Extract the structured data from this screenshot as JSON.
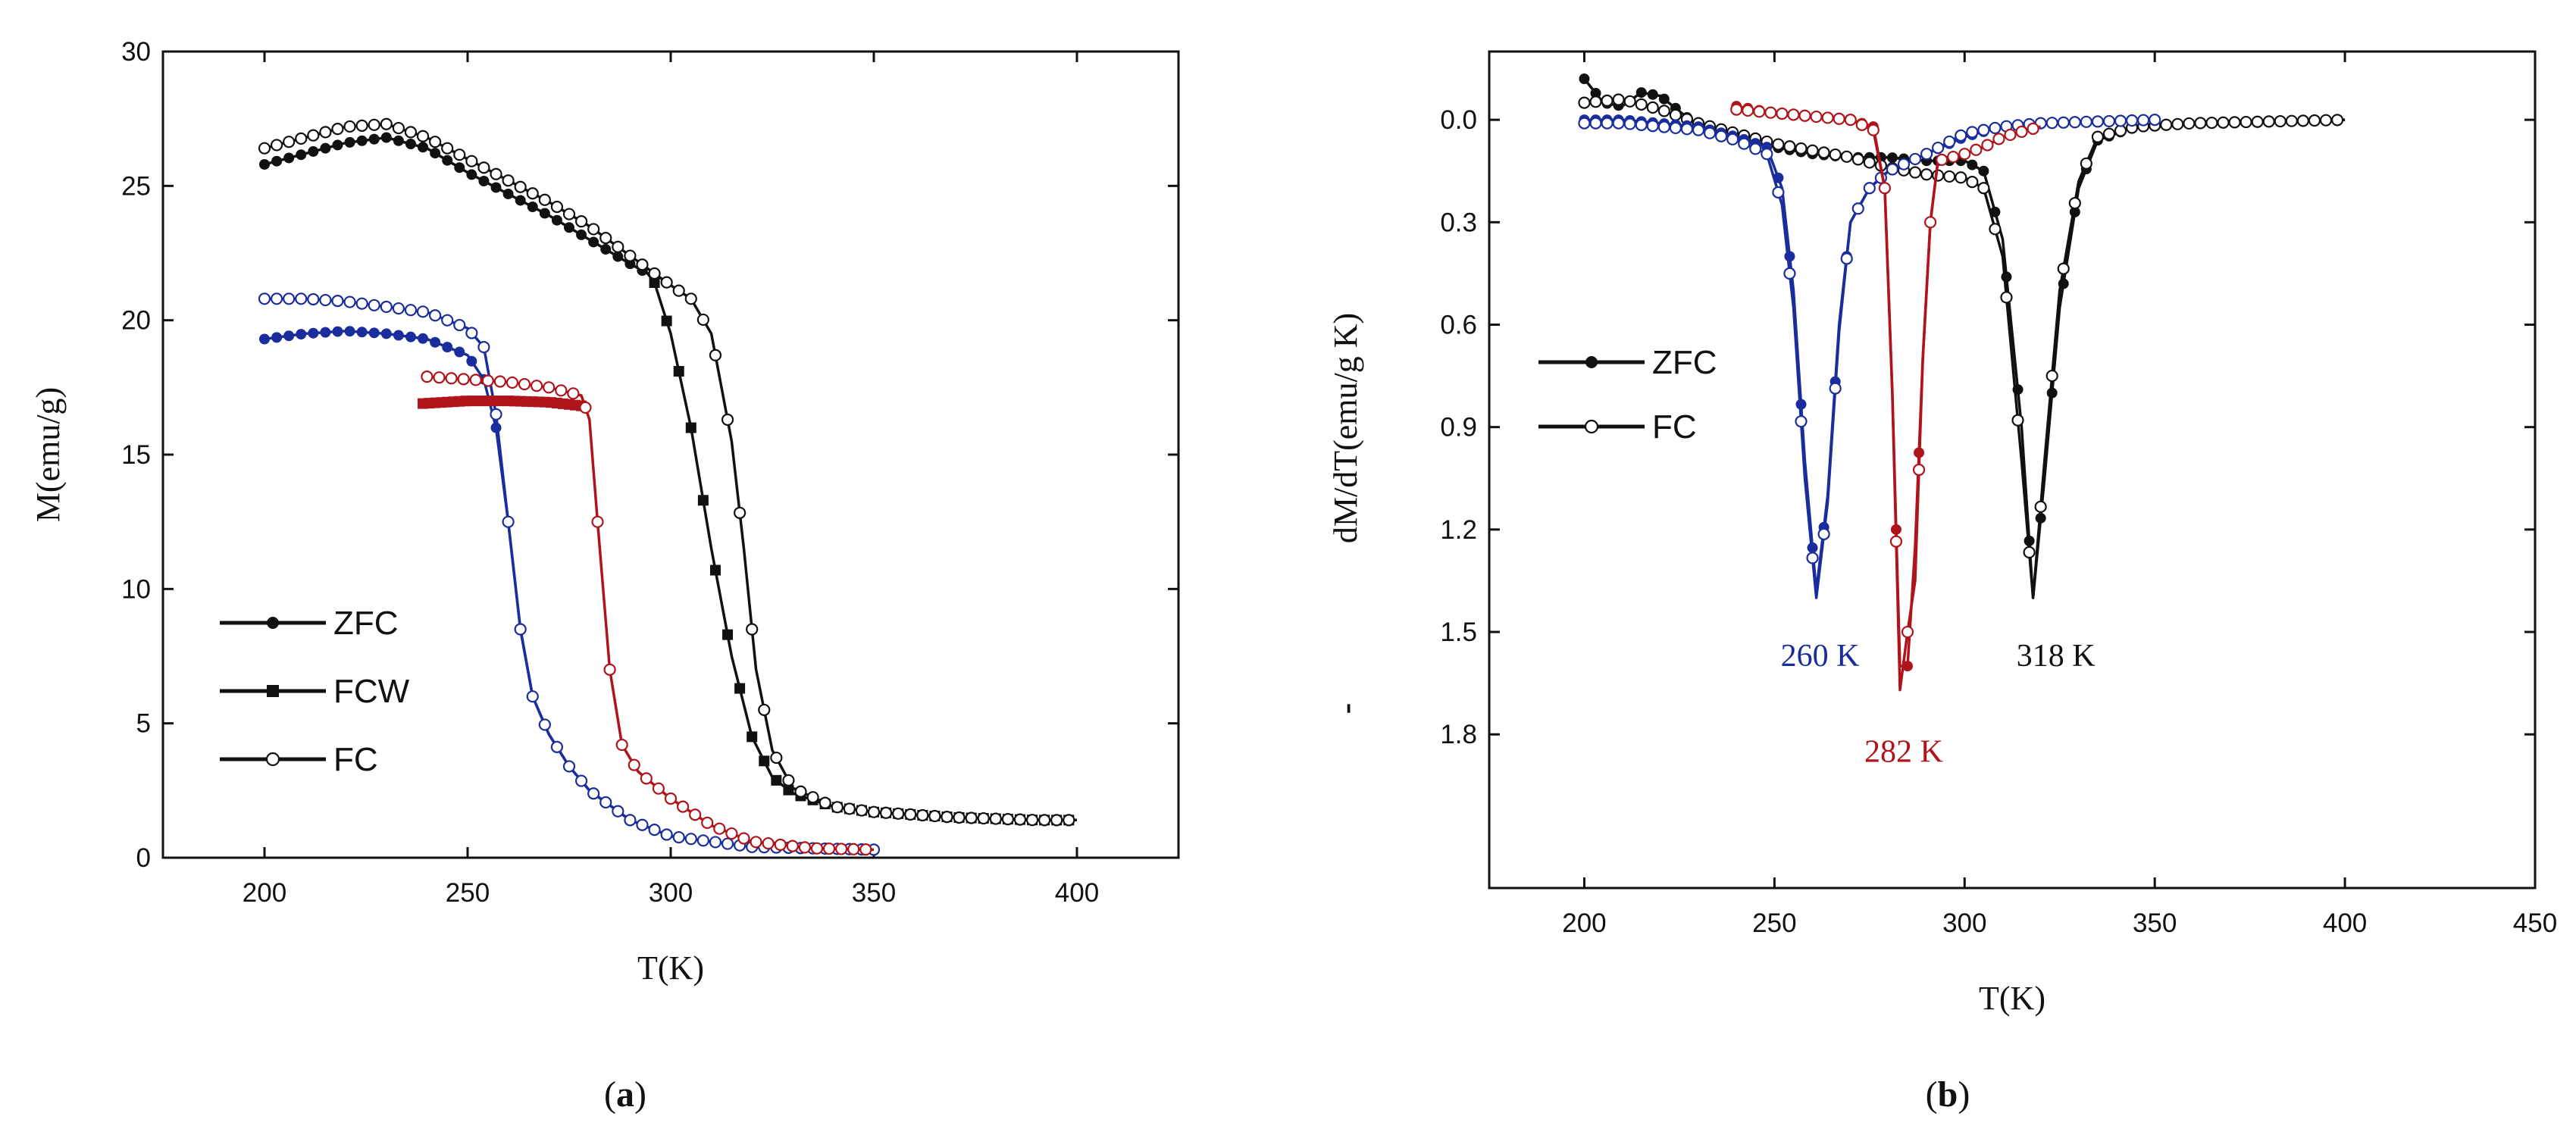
{
  "chart_data": [
    {
      "id": "a",
      "type": "line",
      "caption_open": "(",
      "caption_letter": "a",
      "caption_close": ")",
      "xlabel": "T(K)",
      "ylabel": "M(emu/g)",
      "xlim": [
        175,
        425
      ],
      "ylim": [
        0,
        30
      ],
      "xticks": [
        200,
        250,
        300,
        350,
        400
      ],
      "yticks": [
        0,
        5,
        10,
        15,
        20,
        25,
        30
      ],
      "legend_position": "lower-left",
      "legend": [
        {
          "label": "ZFC",
          "marker": "filled-circle"
        },
        {
          "label": "FCW",
          "marker": "filled-square"
        },
        {
          "label": "FC",
          "marker": "open-circle"
        }
      ],
      "series": [
        {
          "name": "ZFC 318K",
          "color": "#111111",
          "marker": "filled-circle",
          "step": 3,
          "end": 296,
          "points": [
            [
              200,
              25.8
            ],
            [
              210,
              26.2
            ],
            [
              220,
              26.6
            ],
            [
              230,
              26.8
            ],
            [
              240,
              26.4
            ],
            [
              250,
              25.5
            ],
            [
              260,
              24.7
            ],
            [
              270,
              23.9
            ],
            [
              280,
              23.0
            ],
            [
              290,
              22.1
            ],
            [
              296,
              21.6
            ]
          ]
        },
        {
          "name": "FCW 318K",
          "color": "#111111",
          "marker": "filled-square",
          "step": 3,
          "end": 400,
          "points": [
            [
              293,
              22.0
            ],
            [
              296,
              21.4
            ],
            [
              300,
              19.5
            ],
            [
              305,
              16.0
            ],
            [
              310,
              11.5
            ],
            [
              315,
              7.5
            ],
            [
              320,
              4.5
            ],
            [
              325,
              3.0
            ],
            [
              330,
              2.4
            ],
            [
              340,
              1.9
            ],
            [
              350,
              1.7
            ],
            [
              360,
              1.6
            ],
            [
              370,
              1.5
            ],
            [
              380,
              1.45
            ],
            [
              390,
              1.4
            ],
            [
              400,
              1.4
            ]
          ]
        },
        {
          "name": "FC 318K",
          "color": "#111111",
          "marker": "open-circle",
          "step": 3,
          "end": 400,
          "points": [
            [
              200,
              26.4
            ],
            [
              210,
              26.8
            ],
            [
              220,
              27.2
            ],
            [
              230,
              27.3
            ],
            [
              240,
              26.8
            ],
            [
              250,
              26.0
            ],
            [
              260,
              25.2
            ],
            [
              270,
              24.4
            ],
            [
              280,
              23.5
            ],
            [
              290,
              22.4
            ],
            [
              300,
              21.3
            ],
            [
              305,
              20.8
            ],
            [
              310,
              19.5
            ],
            [
              315,
              15.5
            ],
            [
              318,
              11.5
            ],
            [
              321,
              7.0
            ],
            [
              325,
              4.0
            ],
            [
              330,
              2.6
            ],
            [
              340,
              1.9
            ],
            [
              350,
              1.7
            ],
            [
              360,
              1.6
            ],
            [
              370,
              1.5
            ],
            [
              380,
              1.45
            ],
            [
              390,
              1.4
            ],
            [
              400,
              1.4
            ]
          ]
        },
        {
          "name": "ZFC 260K",
          "color": "#1a2d9c",
          "marker": "filled-circle",
          "step": 3,
          "end": 350,
          "points": [
            [
              200,
              19.3
            ],
            [
              210,
              19.5
            ],
            [
              220,
              19.6
            ],
            [
              230,
              19.5
            ],
            [
              240,
              19.3
            ],
            [
              250,
              18.7
            ],
            [
              254,
              17.8
            ],
            [
              257,
              16.0
            ],
            [
              260,
              12.5
            ],
            [
              263,
              8.5
            ],
            [
              266,
              6.0
            ],
            [
              270,
              4.6
            ],
            [
              275,
              3.4
            ],
            [
              280,
              2.5
            ],
            [
              290,
              1.4
            ],
            [
              300,
              0.8
            ],
            [
              320,
              0.4
            ],
            [
              350,
              0.3
            ]
          ]
        },
        {
          "name": "FC 260K",
          "color": "#1a2d9c",
          "marker": "open-circle",
          "step": 3,
          "end": 350,
          "points": [
            [
              200,
              20.8
            ],
            [
              210,
              20.8
            ],
            [
              220,
              20.7
            ],
            [
              230,
              20.5
            ],
            [
              240,
              20.3
            ],
            [
              250,
              19.7
            ],
            [
              254,
              19.0
            ],
            [
              257,
              16.5
            ],
            [
              260,
              12.5
            ],
            [
              263,
              8.5
            ],
            [
              266,
              6.0
            ],
            [
              270,
              4.6
            ],
            [
              275,
              3.4
            ],
            [
              280,
              2.5
            ],
            [
              290,
              1.4
            ],
            [
              300,
              0.8
            ],
            [
              320,
              0.4
            ],
            [
              350,
              0.3
            ]
          ]
        },
        {
          "name": "FCW 282K",
          "color": "#b0141b",
          "marker": "filled-square",
          "step": 1.5,
          "end": 279,
          "points": [
            [
              239,
              16.9
            ],
            [
              250,
              17.0
            ],
            [
              260,
              17.0
            ],
            [
              270,
              16.95
            ],
            [
              279,
              16.8
            ]
          ]
        },
        {
          "name": "FC 282K",
          "color": "#b0141b",
          "marker": "open-circle",
          "step": 3,
          "end": 350,
          "points": [
            [
              240,
              17.9
            ],
            [
              250,
              17.8
            ],
            [
              260,
              17.7
            ],
            [
              270,
              17.5
            ],
            [
              278,
              17.2
            ],
            [
              280,
              16.3
            ],
            [
              282,
              12.5
            ],
            [
              285,
              7.0
            ],
            [
              288,
              4.2
            ],
            [
              292,
              3.2
            ],
            [
              300,
              2.2
            ],
            [
              310,
              1.2
            ],
            [
              320,
              0.6
            ],
            [
              335,
              0.35
            ],
            [
              350,
              0.3
            ]
          ]
        }
      ]
    },
    {
      "id": "b",
      "type": "line",
      "caption_open": "(",
      "caption_letter": "b",
      "caption_close": ")",
      "xlabel": "T(K)",
      "ylabel": "dM/dT(emu/g K)",
      "ylabel_prefix": "-",
      "xlim": [
        175,
        450
      ],
      "ylim": [
        -0.2,
        2.25
      ],
      "y_inverted": true,
      "xticks": [
        200,
        250,
        300,
        350,
        400,
        450
      ],
      "yticks": [
        "0.0",
        "0.3",
        "0.6",
        "0.9",
        "1.2",
        "1.5",
        "1.8"
      ],
      "ytick_values": [
        0.0,
        0.3,
        0.6,
        0.9,
        1.2,
        1.5,
        1.8
      ],
      "legend_position": "upper-left",
      "legend": [
        {
          "label": "ZFC",
          "marker": "filled-circle"
        },
        {
          "label": "FC",
          "marker": "open-circle"
        }
      ],
      "annotations": [
        {
          "text": "260 K",
          "x": 262,
          "y": 1.6,
          "color": "#1a2d9c"
        },
        {
          "text": "282 K",
          "x": 284,
          "y": 1.88,
          "color": "#b0141b"
        },
        {
          "text": "318 K",
          "x": 324,
          "y": 1.6,
          "color": "#111111"
        }
      ],
      "series": [
        {
          "name": "ZFC 318K",
          "color": "#111111",
          "marker": "filled-circle",
          "step": 3,
          "end": 400,
          "points": [
            [
              200,
              -0.12
            ],
            [
              205,
              -0.05
            ],
            [
              210,
              -0.04
            ],
            [
              215,
              -0.08
            ],
            [
              220,
              -0.07
            ],
            [
              230,
              0.02
            ],
            [
              240,
              0.06
            ],
            [
              250,
              0.08
            ],
            [
              260,
              0.1
            ],
            [
              270,
              0.11
            ],
            [
              280,
              0.11
            ],
            [
              290,
              0.12
            ],
            [
              300,
              0.12
            ],
            [
              305,
              0.15
            ],
            [
              310,
              0.35
            ],
            [
              315,
              0.9
            ],
            [
              318,
              1.4
            ],
            [
              321,
              1.05
            ],
            [
              325,
              0.55
            ],
            [
              330,
              0.2
            ],
            [
              335,
              0.06
            ],
            [
              345,
              0.02
            ],
            [
              360,
              0.01
            ],
            [
              400,
              0.0
            ]
          ]
        },
        {
          "name": "FC 318K",
          "color": "#111111",
          "marker": "open-circle",
          "step": 3,
          "end": 400,
          "points": [
            [
              200,
              -0.05
            ],
            [
              210,
              -0.06
            ],
            [
              220,
              -0.03
            ],
            [
              230,
              0.01
            ],
            [
              240,
              0.04
            ],
            [
              250,
              0.07
            ],
            [
              260,
              0.09
            ],
            [
              270,
              0.11
            ],
            [
              280,
              0.14
            ],
            [
              290,
              0.16
            ],
            [
              300,
              0.17
            ],
            [
              305,
              0.2
            ],
            [
              310,
              0.4
            ],
            [
              315,
              1.0
            ],
            [
              318,
              1.4
            ],
            [
              321,
              1.0
            ],
            [
              325,
              0.5
            ],
            [
              330,
              0.18
            ],
            [
              335,
              0.05
            ],
            [
              345,
              0.02
            ],
            [
              360,
              0.01
            ],
            [
              400,
              0.0
            ]
          ]
        },
        {
          "name": "ZFC 260K",
          "color": "#1a2d9c",
          "marker": "filled-circle",
          "step": 3,
          "end": 350,
          "points": [
            [
              200,
              0.0
            ],
            [
              210,
              0.0
            ],
            [
              220,
              0.01
            ],
            [
              230,
              0.02
            ],
            [
              240,
              0.05
            ],
            [
              248,
              0.08
            ],
            [
              252,
              0.2
            ],
            [
              255,
              0.5
            ],
            [
              258,
              1.0
            ],
            [
              261,
              1.38
            ],
            [
              264,
              1.1
            ],
            [
              267,
              0.6
            ],
            [
              270,
              0.3
            ],
            [
              275,
              0.2
            ],
            [
              280,
              0.15
            ],
            [
              290,
              0.1
            ],
            [
              300,
              0.05
            ],
            [
              310,
              0.02
            ],
            [
              320,
              0.01
            ],
            [
              350,
              0.0
            ]
          ]
        },
        {
          "name": "FC 260K",
          "color": "#1a2d9c",
          "marker": "open-circle",
          "step": 3,
          "end": 350,
          "points": [
            [
              200,
              0.01
            ],
            [
              210,
              0.01
            ],
            [
              220,
              0.02
            ],
            [
              230,
              0.03
            ],
            [
              240,
              0.06
            ],
            [
              248,
              0.1
            ],
            [
              252,
              0.25
            ],
            [
              255,
              0.55
            ],
            [
              258,
              1.05
            ],
            [
              261,
              1.4
            ],
            [
              264,
              1.12
            ],
            [
              267,
              0.62
            ],
            [
              270,
              0.3
            ],
            [
              275,
              0.2
            ],
            [
              280,
              0.15
            ],
            [
              290,
              0.1
            ],
            [
              300,
              0.04
            ],
            [
              310,
              0.02
            ],
            [
              320,
              0.01
            ],
            [
              350,
              0.0
            ]
          ]
        },
        {
          "name": "ZFC 282K",
          "color": "#b0141b",
          "marker": "filled-circle",
          "step": 3,
          "end": 293,
          "points": [
            [
              240,
              -0.04
            ],
            [
              250,
              -0.02
            ],
            [
              260,
              -0.01
            ],
            [
              270,
              0.0
            ],
            [
              276,
              0.02
            ],
            [
              279,
              0.2
            ],
            [
              281,
              0.8
            ],
            [
              283,
              1.6
            ],
            [
              285,
              1.6
            ],
            [
              287,
              1.25
            ],
            [
              289,
              0.7
            ],
            [
              291,
              0.3
            ],
            [
              293,
              0.12
            ]
          ]
        },
        {
          "name": "FC 282K",
          "color": "#b0141b",
          "marker": "open-circle",
          "step": 3,
          "end": 320,
          "points": [
            [
              240,
              -0.03
            ],
            [
              250,
              -0.02
            ],
            [
              260,
              -0.01
            ],
            [
              270,
              0.0
            ],
            [
              276,
              0.03
            ],
            [
              279,
              0.2
            ],
            [
              281,
              0.8
            ],
            [
              283,
              1.67
            ],
            [
              285,
              1.5
            ],
            [
              287,
              1.35
            ],
            [
              289,
              0.7
            ],
            [
              291,
              0.3
            ],
            [
              293,
              0.12
            ],
            [
              300,
              0.1
            ],
            [
              305,
              0.08
            ],
            [
              310,
              0.05
            ],
            [
              320,
              0.02
            ]
          ]
        }
      ]
    }
  ]
}
